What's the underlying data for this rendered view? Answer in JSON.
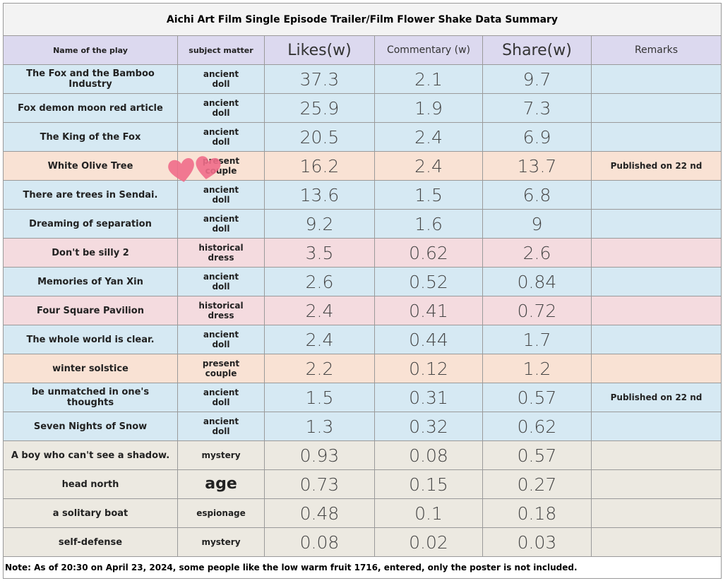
{
  "header": {
    "title": "Aichi Art Film Single Episode Trailer/Film Flower Shake Data Summary"
  },
  "table": {
    "columns": [
      "Name of the play",
      "subject matter",
      "Likes(w)",
      "Commentary (w)",
      "Share(w)",
      "Remarks"
    ],
    "header_color": "#dcd9ef",
    "rows": [
      {
        "name": "The Fox and the Bamboo Industry",
        "subject": "ancient doll",
        "likes": 37.3,
        "commentary": 2.1,
        "share": 9.7,
        "color": "#d6e9f3"
      },
      {
        "name": "Fox demon moon red article",
        "subject": "ancient doll",
        "likes": 25.9,
        "commentary": 1.9,
        "share": 7.3,
        "color": "#d6e9f3"
      },
      {
        "name": "The King of the Fox",
        "subject": "ancient doll",
        "likes": 20.5,
        "commentary": 2.4,
        "share": 6.9,
        "color": "#d6e9f3"
      },
      {
        "name": "White Olive Tree",
        "subject": "present couple",
        "likes": 16.2,
        "commentary": 2.4,
        "share": 13.7,
        "remarks": "Published on 22 nd",
        "color": "#f9e2d4"
      },
      {
        "name": "There are trees in Sendai.",
        "subject": "ancient doll",
        "likes": 13.6,
        "commentary": 1.5,
        "share": 6.8,
        "color": "#d6e9f3"
      },
      {
        "name": "Dreaming of separation",
        "subject": "ancient doll",
        "likes": 9.2,
        "commentary": 1.6,
        "share": 9,
        "color": "#d6e9f3"
      },
      {
        "name": "Don't be silly 2",
        "subject": "historical dress",
        "likes": 3.5,
        "commentary": 0.62,
        "share": 2.6,
        "color": "#f4dbdf"
      },
      {
        "name": "Memories of Yan Xin",
        "subject": "ancient doll",
        "likes": 2.6,
        "commentary": 0.52,
        "share": 0.84,
        "color": "#d6e9f3"
      },
      {
        "name": "Four Square Pavilion",
        "subject": "historical dress",
        "likes": 2.4,
        "commentary": 0.41,
        "share": 0.72,
        "color": "#f4dbdf"
      },
      {
        "name": "The whole world is clear.",
        "subject": "ancient doll",
        "likes": 2.4,
        "commentary": 0.44,
        "share": 1.7,
        "color": "#d6e9f3"
      },
      {
        "name": "winter solstice",
        "subject": "present couple",
        "likes": 2.2,
        "commentary": 0.12,
        "share": 1.2,
        "color": "#f9e2d4"
      },
      {
        "name": "be unmatched in one's thoughts",
        "subject": "ancient doll",
        "likes": 1.5,
        "commentary": 0.31,
        "share": 0.57,
        "remarks": "Published on 22 nd",
        "color": "#d6e9f3"
      },
      {
        "name": "Seven Nights of Snow",
        "subject": "ancient doll",
        "likes": 1.3,
        "commentary": 0.32,
        "share": 0.62,
        "color": "#d6e9f3"
      },
      {
        "name": "A boy who can't see a shadow.",
        "subject": "mystery",
        "likes": 0.93,
        "commentary": 0.08,
        "share": 0.57,
        "color": "#ece9e1"
      },
      {
        "name": "head north",
        "subject": "age",
        "likes": 0.73,
        "commentary": 0.15,
        "share": 0.27,
        "color": "#ece9e1"
      },
      {
        "name": "a solitary boat",
        "subject": "espionage",
        "likes": 0.48,
        "commentary": 0.1,
        "share": 0.18,
        "color": "#ece9e1"
      },
      {
        "name": "self-defense",
        "subject": "mystery",
        "likes": 0.08,
        "commentary": 0.02,
        "share": 0.03,
        "color": "#ece9e1"
      }
    ]
  },
  "note": "Note: As of 20:30 on April 23, 2024, some people like the low warm fruit 1716, entered, only the poster is not included."
}
